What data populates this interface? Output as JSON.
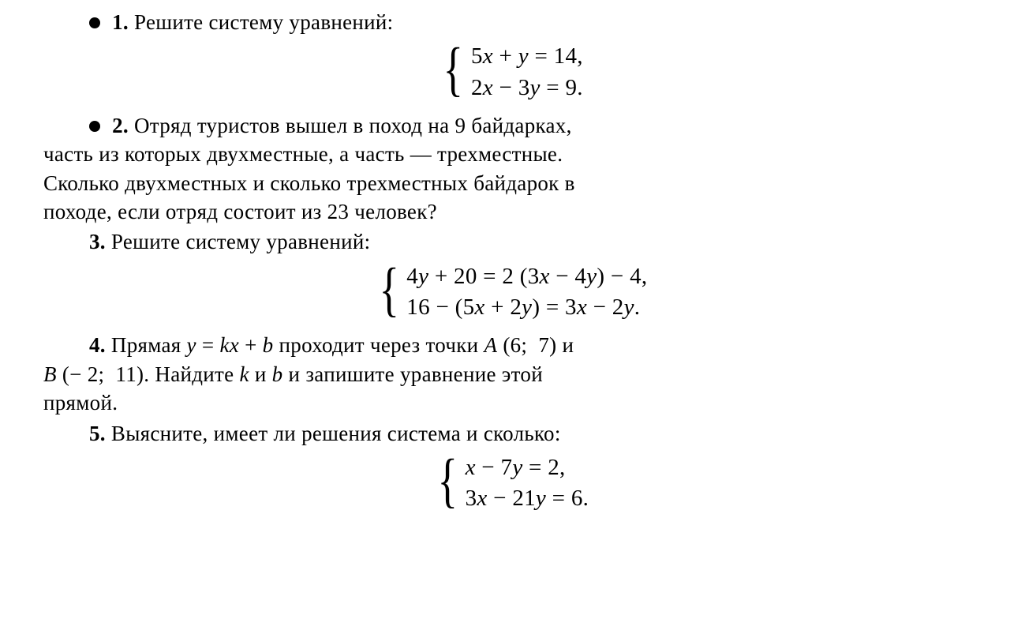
{
  "text_color": "#000000",
  "background_color": "#ffffff",
  "base_fontsize": 27,
  "eq_fontsize": 29,
  "brace_fontsize": 76,
  "problems": {
    "p1": {
      "num": "1.",
      "text": "Решите систему уравнений:",
      "eq1": "5x + y = 14,",
      "eq2": "2x − 3y = 9."
    },
    "p2": {
      "num": "2.",
      "line1_after_num": "Отряд туристов вышел в поход на 9 байдарках,",
      "line2": "часть из которых двухместные, а часть — трехместные.",
      "line3": "Сколько двухместных и сколько трехместных байдарок в",
      "line4": "походе, если отряд состоит из 23 человек?"
    },
    "p3": {
      "num": "3.",
      "text": "Решите систему уравнений:",
      "eq1": "4y + 20 = 2 (3x − 4y) − 4,",
      "eq2": "16 − (5x + 2y) = 3x − 2y."
    },
    "p4": {
      "num": "4.",
      "line1_a": "Прямая ",
      "line1_eq": "y = kx + b",
      "line1_b": " проходит через точки ",
      "line1_ptA": "A (6; 7)",
      "line1_c": " и",
      "line2_ptB": "B (− 2; 11).",
      "line2_a": " Найдите ",
      "line2_k": "k",
      "line2_b": " и ",
      "line2_bv": "b",
      "line2_c": " и запишите уравнение этой",
      "line3": "прямой."
    },
    "p5": {
      "num": "5.",
      "text": "Выясните, имеет ли решения система и сколько:",
      "eq1": "x − 7y = 2,",
      "eq2": "3x − 21y = 6."
    }
  }
}
